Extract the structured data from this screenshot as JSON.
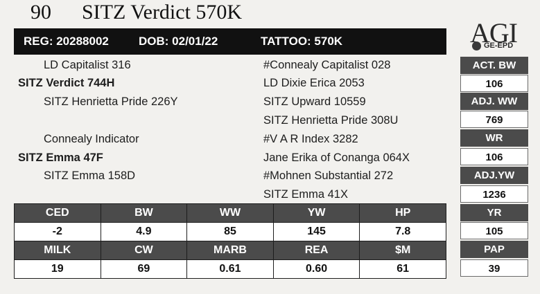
{
  "header": {
    "lot": "90",
    "name": "SITZ Verdict 570K"
  },
  "regbar": {
    "reg": "REG: 20288002",
    "dob": "DOB: 02/01/22",
    "tattoo": "TATTOO: 570K"
  },
  "logo": {
    "brand": "AGI",
    "tag": "GE-EPD"
  },
  "pedigree": {
    "sire_sire": "LD Capitalist 316",
    "sire": "SITZ Verdict 744H",
    "sire_dam": "SITZ Henrietta Pride 226Y",
    "dam_sire": "Connealy Indicator",
    "dam": "SITZ Emma 47F",
    "dam_dam": "SITZ Emma 158D",
    "g3": [
      "#Connealy Capitalist 028",
      "LD Dixie Erica 2053",
      "SITZ Upward 10559",
      "SITZ Henrietta Pride 308U",
      "#V A R Index 3282",
      "Jane Erika of Conanga 064X",
      "#Mohnen Substantial 272",
      "SITZ Emma 41X"
    ]
  },
  "performance": [
    {
      "label": "ACT. BW",
      "value": "106"
    },
    {
      "label": "ADJ. WW",
      "value": "769"
    },
    {
      "label": "WR",
      "value": "106"
    },
    {
      "label": "ADJ.YW",
      "value": "1236"
    },
    {
      "label": "YR",
      "value": "105"
    },
    {
      "label": "PAP",
      "value": "39"
    }
  ],
  "epds_row1": {
    "headers": [
      "CED",
      "BW",
      "WW",
      "YW",
      "HP"
    ],
    "values": [
      "-2",
      "4.9",
      "85",
      "145",
      "7.8"
    ]
  },
  "epds_row2": {
    "headers": [
      "MILK",
      "CW",
      "MARB",
      "REA",
      "$M"
    ],
    "values": [
      "19",
      "69",
      "0.61",
      "0.60",
      "61"
    ]
  }
}
